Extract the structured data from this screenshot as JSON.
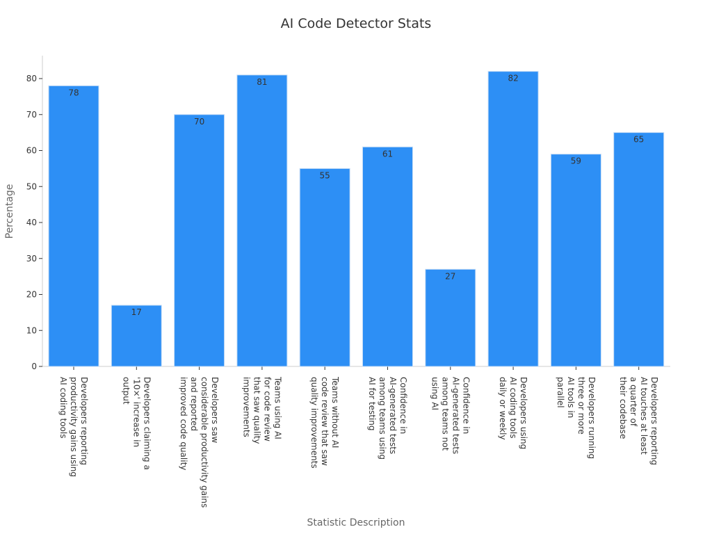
{
  "chart_data": {
    "type": "bar",
    "title": "AI Code Detector Stats",
    "xlabel": "Statistic Description",
    "ylabel": "Percentage",
    "ylim": [
      0,
      86
    ],
    "yticks": [
      0,
      10,
      20,
      30,
      40,
      50,
      60,
      70,
      80
    ],
    "grid": false,
    "bar_color": "#2d8ff5",
    "categories": [
      [
        "Developers reporting",
        "productivity gains using",
        "AI coding tools"
      ],
      [
        "Developers claiming a",
        "'10×' increase in",
        "output"
      ],
      [
        "Developers saw",
        "considerable productivity gains",
        "and reported",
        "improved code quality"
      ],
      [
        "Teams using AI",
        "for code review",
        "that saw quality",
        "improvements"
      ],
      [
        "Teams without AI",
        "code review that saw",
        "quality improvements"
      ],
      [
        "Confidence in",
        "AI-generated tests",
        "among teams using",
        "AI for testing"
      ],
      [
        "Confidence in",
        "AI-generated tests",
        "among teams not",
        "using AI"
      ],
      [
        "Developers using",
        "AI coding tools",
        "daily or weekly"
      ],
      [
        "Developers running",
        "three or more",
        "AI tools in",
        "parallel"
      ],
      [
        "Developers reporting",
        "AI touches at least",
        "a quarter of",
        "their codebase"
      ]
    ],
    "values": [
      78,
      17,
      70,
      81,
      55,
      61,
      27,
      82,
      59,
      65
    ]
  }
}
